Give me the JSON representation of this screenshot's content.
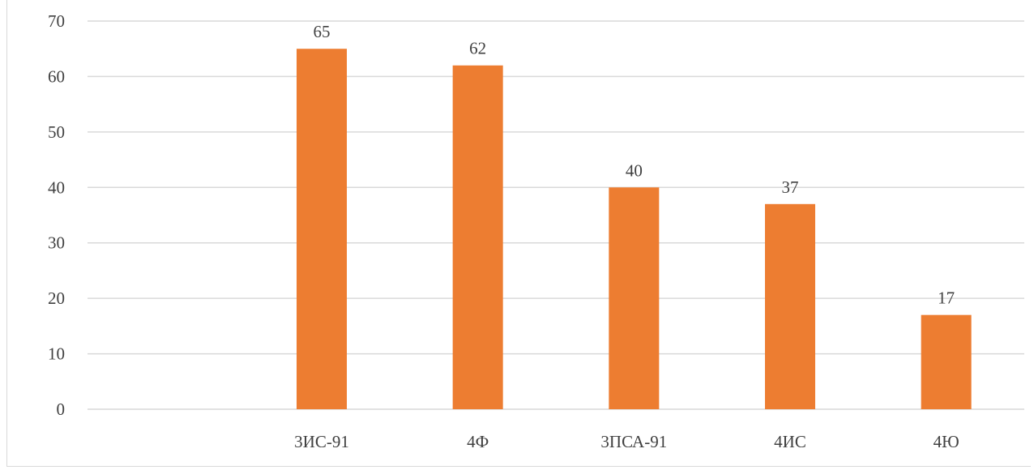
{
  "chart_data": {
    "type": "bar",
    "categories": [
      "",
      "3ИС-91",
      "4Ф",
      "3ПСА-91",
      "4ИС",
      "4Ю"
    ],
    "values": [
      null,
      65,
      62,
      40,
      37,
      17
    ],
    "ylim": [
      0,
      70
    ],
    "yticks": [
      0,
      10,
      20,
      30,
      40,
      50,
      60,
      70
    ],
    "grid": true,
    "bar_color": "#ed7d31",
    "gridline_color": "#d9d9d9",
    "text_color": "#404040",
    "data_labels": true
  }
}
